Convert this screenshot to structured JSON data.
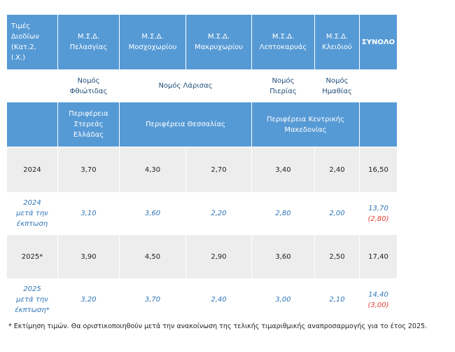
{
  "header": {
    "title_cell": [
      "Τιμές",
      "Διοδίων",
      "(Κατ.2,",
      "Ι.Χ.)"
    ],
    "stations": [
      [
        "Μ.Σ.Δ.",
        "Πελασγίας"
      ],
      [
        "Μ.Σ.Δ.",
        "Μοσχοχωρίου"
      ],
      [
        "Μ.Σ.Δ.",
        "Μακρυχωρίου"
      ],
      [
        "Μ.Σ.Δ.",
        "Λεπτοκαρυάς"
      ],
      [
        "Μ.Σ.Δ.",
        "Κλειδιού"
      ]
    ],
    "total": "ΣΥΝΟΛΟ"
  },
  "prefectures": {
    "fthiotida": [
      "Νομός",
      "Φθιώτιδας"
    ],
    "larisa": "Νομός Λάρισας",
    "pieria": [
      "Νομός",
      "Πιερίας"
    ],
    "imathia": [
      "Νομός",
      "Ημαθίας"
    ]
  },
  "regions": {
    "sterea": [
      "Περιφέρεια",
      "Στερεάς",
      "Ελλάδας"
    ],
    "thessalia": "Περιφέρεια Θεσσαλίας",
    "kentriki": [
      "Περιφέρεια Κεντρικής",
      "Μακεδονίας"
    ]
  },
  "rows": [
    {
      "label": [
        "2024"
      ],
      "values": [
        "3,70",
        "4,30",
        "2,70",
        "3,40",
        "2,40"
      ],
      "total": "16,50",
      "saving": ""
    },
    {
      "label": [
        "2024",
        "μετά την",
        "έκπτωση"
      ],
      "values": [
        "3,10",
        "3,60",
        "2,20",
        "2,80",
        "2,00"
      ],
      "total": "13,70",
      "saving": "(2,80)"
    },
    {
      "label": [
        "2025*"
      ],
      "values": [
        "3,90",
        "4,50",
        "2,90",
        "3,60",
        "2,50"
      ],
      "total": "17,40",
      "saving": ""
    },
    {
      "label": [
        "2025",
        "μετά την",
        "έκπτωση*"
      ],
      "values": [
        "3,20",
        "3,70",
        "2,40",
        "3,00",
        "2,10"
      ],
      "total": "14,40",
      "saving": "(3,00)"
    }
  ],
  "footnote": "* Εκτίμηση τιμών. Θα οριστικοποιηθούν μετά την ανακοίνωση της τελικής τιμαριθμικής αναπροσαρμογής για το έτος 2025."
}
